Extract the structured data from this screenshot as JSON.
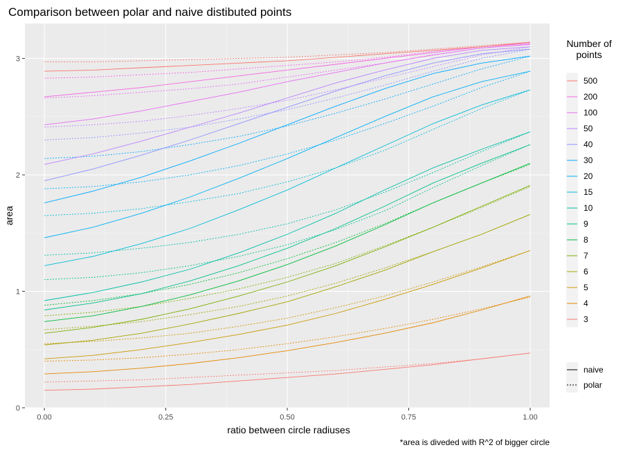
{
  "chart_data": {
    "type": "line",
    "title": "Comparison between polar and naive distibuted points",
    "xlabel": "ratio between circle radiuses",
    "ylabel": "area",
    "caption": "*area is diveded with R^2 of bigger circle",
    "xlim": [
      -0.04,
      1.04
    ],
    "ylim": [
      0,
      3.3
    ],
    "x_ticks": [
      0.0,
      0.25,
      0.5,
      0.75,
      1.0
    ],
    "x_tick_labels": [
      "0.00",
      "0.25",
      "0.50",
      "0.75",
      "1.00"
    ],
    "y_ticks": [
      0,
      1,
      2,
      3
    ],
    "y_tick_labels": [
      "0",
      "1",
      "2",
      "3"
    ],
    "grid": true,
    "background": "#ebebeb",
    "legend_position": "right",
    "colour_legend": {
      "title_lines": [
        "Number of",
        "points"
      ],
      "entries": [
        {
          "label": "500",
          "color": "#f8766d"
        },
        {
          "label": "200",
          "color": "#f564e3"
        },
        {
          "label": "100",
          "color": "#e76bf3"
        },
        {
          "label": "50",
          "color": "#b983ff"
        },
        {
          "label": "40",
          "color": "#8f91ff"
        },
        {
          "label": "30",
          "color": "#00a9ff"
        },
        {
          "label": "20",
          "color": "#00b0f6"
        },
        {
          "label": "15",
          "color": "#00bcd8"
        },
        {
          "label": "10",
          "color": "#00bfa5"
        },
        {
          "label": "9",
          "color": "#00c08b"
        },
        {
          "label": "8",
          "color": "#00ba38"
        },
        {
          "label": "7",
          "color": "#7cae00"
        },
        {
          "label": "6",
          "color": "#a3a500"
        },
        {
          "label": "5",
          "color": "#c99800"
        },
        {
          "label": "4",
          "color": "#e58700"
        },
        {
          "label": "3",
          "color": "#f8766d"
        }
      ]
    },
    "linetype_legend": {
      "entries": [
        {
          "label": "naive",
          "dash": "solid"
        },
        {
          "label": "polar",
          "dash": "dotted"
        }
      ]
    },
    "x": [
      0.0,
      0.1,
      0.2,
      0.3,
      0.4,
      0.5,
      0.6,
      0.7,
      0.8,
      0.9,
      1.0
    ],
    "series": [
      {
        "points": "3",
        "type": "naive",
        "color": "#f8766d",
        "values": [
          0.15,
          0.16,
          0.18,
          0.2,
          0.23,
          0.26,
          0.29,
          0.33,
          0.37,
          0.42,
          0.47
        ]
      },
      {
        "points": "3",
        "type": "polar",
        "color": "#f8766d",
        "values": [
          0.22,
          0.23,
          0.24,
          0.26,
          0.28,
          0.3,
          0.32,
          0.35,
          0.38,
          0.42,
          0.47
        ]
      },
      {
        "points": "4",
        "type": "naive",
        "color": "#e58700",
        "values": [
          0.29,
          0.31,
          0.34,
          0.38,
          0.43,
          0.49,
          0.56,
          0.64,
          0.73,
          0.84,
          0.96
        ]
      },
      {
        "points": "4",
        "type": "polar",
        "color": "#e58700",
        "values": [
          0.4,
          0.41,
          0.43,
          0.46,
          0.5,
          0.55,
          0.61,
          0.68,
          0.76,
          0.85,
          0.95
        ]
      },
      {
        "points": "5",
        "type": "naive",
        "color": "#c99800",
        "values": [
          0.42,
          0.45,
          0.5,
          0.56,
          0.63,
          0.71,
          0.81,
          0.93,
          1.06,
          1.2,
          1.35
        ]
      },
      {
        "points": "5",
        "type": "polar",
        "color": "#c99800",
        "values": [
          0.55,
          0.57,
          0.6,
          0.64,
          0.7,
          0.77,
          0.86,
          0.96,
          1.08,
          1.21,
          1.35
        ]
      },
      {
        "points": "6",
        "type": "naive",
        "color": "#a3a500",
        "values": [
          0.54,
          0.58,
          0.64,
          0.72,
          0.81,
          0.91,
          1.04,
          1.18,
          1.34,
          1.49,
          1.66
        ]
      },
      {
        "points": "6",
        "type": "polar",
        "color": "#a3a500",
        "values": [
          0.67,
          0.7,
          0.74,
          0.8,
          0.87,
          0.96,
          1.07,
          1.2,
          1.34,
          1.49,
          1.66
        ]
      },
      {
        "points": "7",
        "type": "naive",
        "color": "#7cae00",
        "values": [
          0.64,
          0.69,
          0.76,
          0.85,
          0.96,
          1.08,
          1.22,
          1.38,
          1.55,
          1.73,
          1.91
        ]
      },
      {
        "points": "7",
        "type": "polar",
        "color": "#7cae00",
        "values": [
          0.79,
          0.82,
          0.87,
          0.94,
          1.02,
          1.12,
          1.24,
          1.39,
          1.55,
          1.72,
          1.9
        ]
      },
      {
        "points": "8",
        "type": "naive",
        "color": "#00ba38",
        "values": [
          0.74,
          0.79,
          0.87,
          0.97,
          1.09,
          1.23,
          1.39,
          1.57,
          1.76,
          1.93,
          2.1
        ]
      },
      {
        "points": "8",
        "type": "polar",
        "color": "#00ba38",
        "values": [
          0.88,
          0.92,
          0.98,
          1.06,
          1.16,
          1.28,
          1.42,
          1.58,
          1.76,
          1.93,
          2.09
        ]
      },
      {
        "points": "9",
        "type": "naive",
        "color": "#00c08b",
        "values": [
          0.84,
          0.9,
          0.98,
          1.09,
          1.22,
          1.37,
          1.54,
          1.73,
          1.93,
          2.1,
          2.26
        ]
      },
      {
        "points": "9",
        "type": "polar",
        "color": "#00c08b",
        "values": [
          1.1,
          1.12,
          1.16,
          1.22,
          1.3,
          1.4,
          1.53,
          1.69,
          1.89,
          2.08,
          2.26
        ]
      },
      {
        "points": "10",
        "type": "naive",
        "color": "#00bfa5",
        "values": [
          0.92,
          0.99,
          1.08,
          1.19,
          1.33,
          1.49,
          1.67,
          1.87,
          2.06,
          2.22,
          2.37
        ]
      },
      {
        "points": "10",
        "type": "polar",
        "color": "#00bfa5",
        "values": [
          1.31,
          1.33,
          1.37,
          1.42,
          1.49,
          1.58,
          1.7,
          1.85,
          2.02,
          2.2,
          2.37
        ]
      },
      {
        "points": "15",
        "type": "naive",
        "color": "#00bcd8",
        "values": [
          1.22,
          1.3,
          1.41,
          1.54,
          1.7,
          1.87,
          2.06,
          2.25,
          2.44,
          2.6,
          2.73
        ]
      },
      {
        "points": "15",
        "type": "polar",
        "color": "#00bcd8",
        "values": [
          1.65,
          1.67,
          1.71,
          1.77,
          1.84,
          1.94,
          2.06,
          2.21,
          2.39,
          2.57,
          2.73
        ]
      },
      {
        "points": "20",
        "type": "naive",
        "color": "#00b0f6",
        "values": [
          1.46,
          1.55,
          1.67,
          1.81,
          1.97,
          2.14,
          2.32,
          2.5,
          2.67,
          2.8,
          2.89
        ]
      },
      {
        "points": "20",
        "type": "polar",
        "color": "#00b0f6",
        "values": [
          1.88,
          1.9,
          1.94,
          2.0,
          2.08,
          2.18,
          2.3,
          2.44,
          2.59,
          2.75,
          2.89
        ]
      },
      {
        "points": "30",
        "type": "naive",
        "color": "#00a9ff",
        "values": [
          1.76,
          1.86,
          1.98,
          2.12,
          2.27,
          2.43,
          2.59,
          2.74,
          2.87,
          2.96,
          3.02
        ]
      },
      {
        "points": "30",
        "type": "polar",
        "color": "#00a9ff",
        "values": [
          2.14,
          2.16,
          2.2,
          2.26,
          2.33,
          2.42,
          2.53,
          2.65,
          2.78,
          2.91,
          3.02
        ]
      },
      {
        "points": "40",
        "type": "naive",
        "color": "#8f91ff",
        "values": [
          1.95,
          2.05,
          2.17,
          2.3,
          2.44,
          2.58,
          2.72,
          2.85,
          2.96,
          3.04,
          3.08
        ]
      },
      {
        "points": "40",
        "type": "polar",
        "color": "#8f91ff",
        "values": [
          2.3,
          2.32,
          2.36,
          2.41,
          2.48,
          2.56,
          2.66,
          2.77,
          2.89,
          3.0,
          3.08
        ]
      },
      {
        "points": "50",
        "type": "naive",
        "color": "#b983ff",
        "values": [
          2.09,
          2.18,
          2.29,
          2.41,
          2.53,
          2.66,
          2.79,
          2.9,
          3.0,
          3.07,
          3.1
        ]
      },
      {
        "points": "50",
        "type": "polar",
        "color": "#b983ff",
        "values": [
          2.41,
          2.43,
          2.46,
          2.51,
          2.57,
          2.64,
          2.73,
          2.83,
          2.93,
          3.03,
          3.1
        ]
      },
      {
        "points": "100",
        "type": "naive",
        "color": "#e76bf3",
        "values": [
          2.43,
          2.48,
          2.55,
          2.63,
          2.71,
          2.8,
          2.88,
          2.96,
          3.03,
          3.09,
          3.12
        ]
      },
      {
        "points": "100",
        "type": "polar",
        "color": "#e76bf3",
        "values": [
          2.66,
          2.68,
          2.71,
          2.74,
          2.78,
          2.84,
          2.9,
          2.96,
          3.03,
          3.09,
          3.12
        ]
      },
      {
        "points": "200",
        "type": "naive",
        "color": "#f564e3",
        "values": [
          2.67,
          2.71,
          2.75,
          2.8,
          2.85,
          2.9,
          2.95,
          3.0,
          3.05,
          3.1,
          3.13
        ]
      },
      {
        "points": "200",
        "type": "polar",
        "color": "#f564e3",
        "values": [
          2.83,
          2.84,
          2.86,
          2.88,
          2.91,
          2.94,
          2.97,
          3.01,
          3.06,
          3.1,
          3.13
        ]
      },
      {
        "points": "500",
        "type": "naive",
        "color": "#f8766d",
        "values": [
          2.89,
          2.9,
          2.92,
          2.94,
          2.96,
          2.98,
          3.01,
          3.04,
          3.07,
          3.1,
          3.14
        ]
      },
      {
        "points": "500",
        "type": "polar",
        "color": "#f8766d",
        "values": [
          2.97,
          2.97,
          2.98,
          2.99,
          3.0,
          3.01,
          3.03,
          3.05,
          3.08,
          3.11,
          3.14
        ]
      }
    ]
  }
}
